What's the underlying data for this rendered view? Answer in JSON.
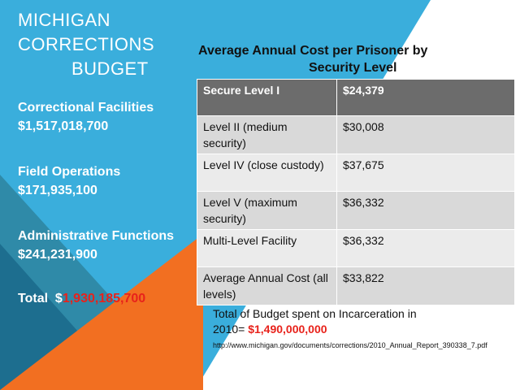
{
  "title": {
    "line1": "MICHIGAN",
    "line2": "CORRECTIONS",
    "line3": "BUDGET"
  },
  "budget_items": [
    {
      "label": "Correctional Facilities",
      "value": "$1,517,018,700"
    },
    {
      "label": "Field Operations",
      "value": "$171,935,100"
    },
    {
      "label": "Administrative Functions",
      "value": "$241,231,900"
    }
  ],
  "total": {
    "label": "Total",
    "currency": "$",
    "amount": "1,930,185,700"
  },
  "table": {
    "title_line1": "Average Annual Cost per Prisoner by",
    "title_line2": "Security Level",
    "rows": [
      {
        "level": "Secure Level I",
        "cost": "$24,379"
      },
      {
        "level": "Level II (medium security)",
        "cost": "$30,008"
      },
      {
        "level": "Level IV (close custody)",
        "cost": "$37,675"
      },
      {
        "level": "Level V (maximum security)",
        "cost": "$36,332"
      },
      {
        "level": "Multi-Level Facility",
        "cost": "$36,332"
      },
      {
        "level": "Average Annual Cost (all levels)",
        "cost": "$33,822"
      }
    ]
  },
  "summary": {
    "text_line1": "Total of Budget spent on Incarceration in",
    "text_year": "2010=",
    "amount": "$1,490,000,000",
    "source_url": "http://www.michigan.gov/documents/corrections/2010_Annual_Report_390338_7.pdf"
  },
  "colors": {
    "blue": "#3aaedc",
    "teal": "#2f8aa8",
    "dark_blue": "#1d6e8f",
    "orange": "#f26f21",
    "header_gray": "#6c6c6c",
    "red_amount": "#e8221b"
  }
}
